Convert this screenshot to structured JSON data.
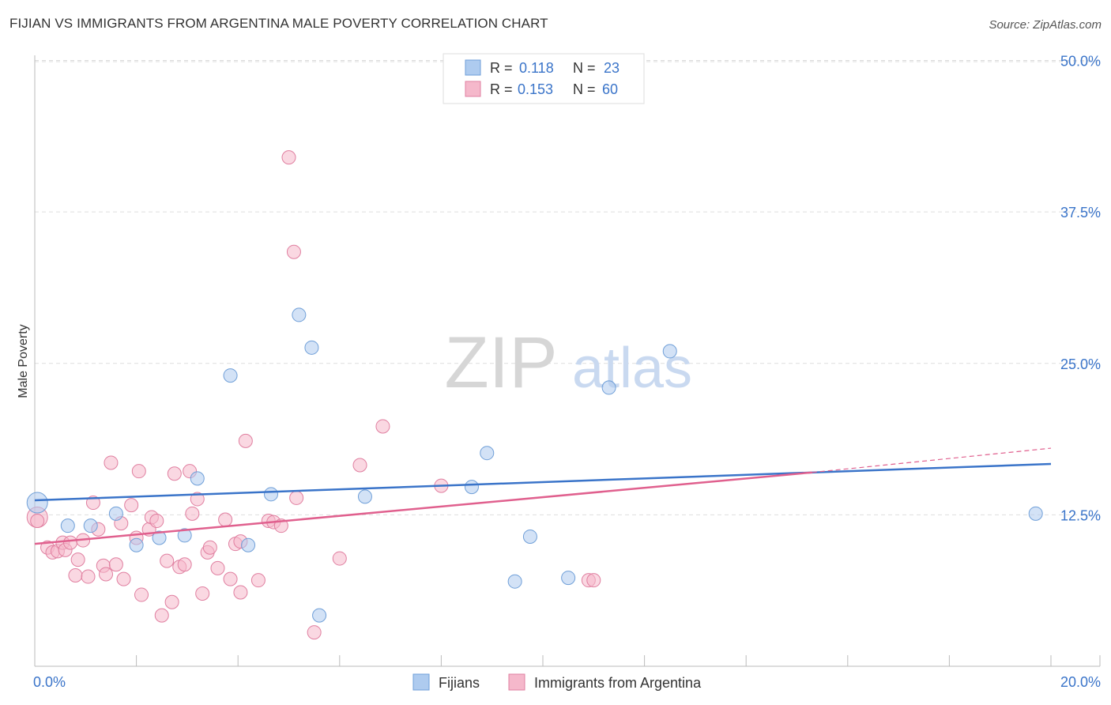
{
  "title": "FIJIAN VS IMMIGRANTS FROM ARGENTINA MALE POVERTY CORRELATION CHART",
  "source": "Source: ZipAtlas.com",
  "watermark": {
    "zip": "ZIP",
    "atlas": "atlas"
  },
  "legend_top": {
    "rows": [
      {
        "r_label": "R =",
        "r_value": "0.118",
        "n_label": "N =",
        "n_value": "23",
        "color": "#aecbef",
        "edge": "#6f9fd8"
      },
      {
        "r_label": "R =",
        "r_value": "0.153",
        "n_label": "N =",
        "n_value": "60",
        "color": "#f5b8cb",
        "edge": "#e07fa0"
      }
    ]
  },
  "legend_bottom": [
    "Fijians",
    "Immigrants from Argentina"
  ],
  "colors": {
    "blue_line": "#3a74c9",
    "pink_line": "#e0608e",
    "value_text": "#3a74c9",
    "grid": "#dddddd"
  },
  "chart_data": {
    "type": "scatter",
    "title": "FIJIAN VS IMMIGRANTS FROM ARGENTINA MALE POVERTY CORRELATION CHART",
    "xlabel": "",
    "ylabel": "Male Poverty",
    "xlim": [
      0,
      20
    ],
    "ylim": [
      0,
      52
    ],
    "x_tick_labels": [
      {
        "value": 0,
        "label": "0.0%"
      },
      {
        "value": 20,
        "label": "20.0%"
      }
    ],
    "y_ticks": [
      {
        "value": 12.5,
        "label": "12.5%"
      },
      {
        "value": 25,
        "label": "25.0%"
      },
      {
        "value": 37.5,
        "label": "37.5%"
      },
      {
        "value": 50,
        "label": "50.0%"
      }
    ],
    "series": [
      {
        "name": "Fijians",
        "color": "#aecbef",
        "edge": "#6f9fd8",
        "trend": {
          "x0": 0,
          "y0": 13.7,
          "x1": 20,
          "y1": 16.7
        },
        "points": [
          {
            "x": 0.05,
            "y": 13.5,
            "big": true
          },
          {
            "x": 0.65,
            "y": 11.6
          },
          {
            "x": 1.1,
            "y": 11.6
          },
          {
            "x": 1.6,
            "y": 12.6
          },
          {
            "x": 2.0,
            "y": 10.0
          },
          {
            "x": 2.45,
            "y": 10.6
          },
          {
            "x": 2.95,
            "y": 10.8
          },
          {
            "x": 3.2,
            "y": 15.5
          },
          {
            "x": 3.85,
            "y": 24.0
          },
          {
            "x": 4.2,
            "y": 10.0
          },
          {
            "x": 4.65,
            "y": 14.2
          },
          {
            "x": 5.2,
            "y": 29.0
          },
          {
            "x": 5.45,
            "y": 26.3
          },
          {
            "x": 5.6,
            "y": 4.2
          },
          {
            "x": 6.5,
            "y": 14.0
          },
          {
            "x": 8.6,
            "y": 14.8
          },
          {
            "x": 8.9,
            "y": 17.6
          },
          {
            "x": 9.45,
            "y": 7.0
          },
          {
            "x": 9.75,
            "y": 10.7
          },
          {
            "x": 10.5,
            "y": 7.3
          },
          {
            "x": 11.3,
            "y": 23.0
          },
          {
            "x": 12.5,
            "y": 26.0
          },
          {
            "x": 19.7,
            "y": 12.6
          }
        ]
      },
      {
        "name": "Immigrants from Argentina",
        "color": "#f5b8cb",
        "edge": "#e07fa0",
        "trend": {
          "x0": 0,
          "y0": 10.1,
          "x1": 15.3,
          "y1": 16.0,
          "dash_x1": 20,
          "dash_y1": 18.0
        },
        "points": [
          {
            "x": 0.05,
            "y": 12.3,
            "big": true
          },
          {
            "x": 0.05,
            "y": 12.0
          },
          {
            "x": 0.25,
            "y": 9.8
          },
          {
            "x": 0.35,
            "y": 9.4
          },
          {
            "x": 0.45,
            "y": 9.5
          },
          {
            "x": 0.55,
            "y": 10.2
          },
          {
            "x": 0.6,
            "y": 9.6
          },
          {
            "x": 0.7,
            "y": 10.2
          },
          {
            "x": 0.8,
            "y": 7.5
          },
          {
            "x": 0.85,
            "y": 8.8
          },
          {
            "x": 0.95,
            "y": 10.4
          },
          {
            "x": 1.05,
            "y": 7.4
          },
          {
            "x": 1.15,
            "y": 13.5
          },
          {
            "x": 1.25,
            "y": 11.3
          },
          {
            "x": 1.35,
            "y": 8.3
          },
          {
            "x": 1.4,
            "y": 7.6
          },
          {
            "x": 1.5,
            "y": 16.8
          },
          {
            "x": 1.6,
            "y": 8.4
          },
          {
            "x": 1.7,
            "y": 11.8
          },
          {
            "x": 1.75,
            "y": 7.2
          },
          {
            "x": 1.9,
            "y": 13.3
          },
          {
            "x": 2.0,
            "y": 10.6
          },
          {
            "x": 2.05,
            "y": 16.1
          },
          {
            "x": 2.1,
            "y": 5.9
          },
          {
            "x": 2.25,
            "y": 11.3
          },
          {
            "x": 2.3,
            "y": 12.3
          },
          {
            "x": 2.4,
            "y": 12.0
          },
          {
            "x": 2.5,
            "y": 4.2
          },
          {
            "x": 2.6,
            "y": 8.7
          },
          {
            "x": 2.7,
            "y": 5.3
          },
          {
            "x": 2.75,
            "y": 15.9
          },
          {
            "x": 2.85,
            "y": 8.2
          },
          {
            "x": 2.95,
            "y": 8.4
          },
          {
            "x": 3.05,
            "y": 16.1
          },
          {
            "x": 3.1,
            "y": 12.6
          },
          {
            "x": 3.2,
            "y": 13.8
          },
          {
            "x": 3.3,
            "y": 6.0
          },
          {
            "x": 3.4,
            "y": 9.4
          },
          {
            "x": 3.45,
            "y": 9.8
          },
          {
            "x": 3.6,
            "y": 8.1
          },
          {
            "x": 3.75,
            "y": 12.1
          },
          {
            "x": 3.85,
            "y": 7.2
          },
          {
            "x": 3.95,
            "y": 10.1
          },
          {
            "x": 4.05,
            "y": 10.3
          },
          {
            "x": 4.05,
            "y": 6.1
          },
          {
            "x": 4.15,
            "y": 18.6
          },
          {
            "x": 4.4,
            "y": 7.1
          },
          {
            "x": 4.6,
            "y": 12.0
          },
          {
            "x": 4.7,
            "y": 11.9
          },
          {
            "x": 4.85,
            "y": 11.6
          },
          {
            "x": 5.0,
            "y": 42.0
          },
          {
            "x": 5.1,
            "y": 34.2
          },
          {
            "x": 5.15,
            "y": 13.9
          },
          {
            "x": 5.5,
            "y": 2.8
          },
          {
            "x": 6.0,
            "y": 8.9
          },
          {
            "x": 6.4,
            "y": 16.6
          },
          {
            "x": 6.85,
            "y": 19.8
          },
          {
            "x": 8.0,
            "y": 14.9
          },
          {
            "x": 10.9,
            "y": 7.1
          },
          {
            "x": 11.0,
            "y": 7.1
          }
        ]
      }
    ]
  }
}
